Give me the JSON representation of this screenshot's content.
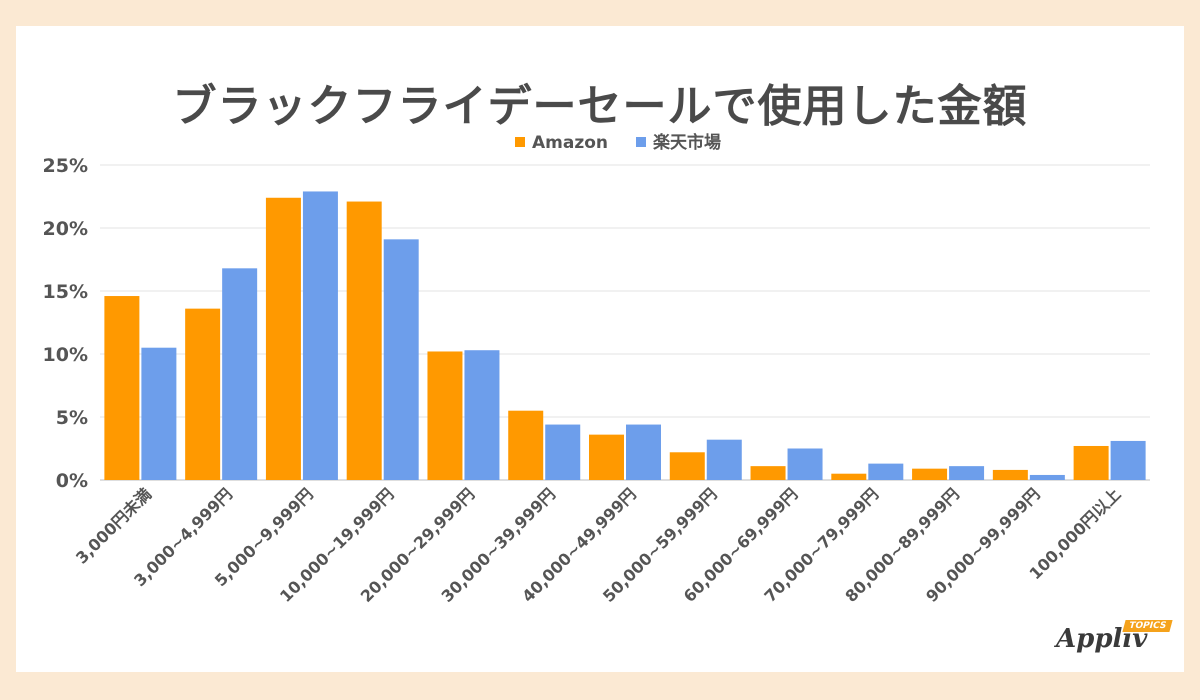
{
  "chart_data": {
    "type": "bar",
    "title": "ブラックフライデーセールで使用した金額",
    "categories": [
      "3,000円未満",
      "3,000~4,999円",
      "5,000~9,999円",
      "10,000~19,999円",
      "20,000~29,999円",
      "30,000~39,999円",
      "40,000~49,999円",
      "50,000~59,999円",
      "60,000~69,999円",
      "70,000~79,999円",
      "80,000~89,999円",
      "90,000~99,999円",
      "100,000円以上"
    ],
    "series": [
      {
        "name": "Amazon",
        "color": "#ff9900",
        "values": [
          14.6,
          13.6,
          22.4,
          22.1,
          10.2,
          5.5,
          3.6,
          2.2,
          1.1,
          0.5,
          0.9,
          0.8,
          2.7
        ]
      },
      {
        "name": "楽天市場",
        "color": "#6d9eeb",
        "values": [
          10.5,
          16.8,
          22.9,
          19.1,
          10.3,
          4.4,
          4.4,
          3.2,
          2.5,
          1.3,
          1.1,
          0.4,
          3.1
        ]
      }
    ],
    "ylim": [
      0,
      25
    ],
    "yticks": [
      "0%",
      "5%",
      "10%",
      "15%",
      "20%",
      "25%"
    ],
    "grid": true,
    "legend": "top"
  },
  "logo": {
    "text": "Appliv",
    "badge": "TOPICS"
  }
}
